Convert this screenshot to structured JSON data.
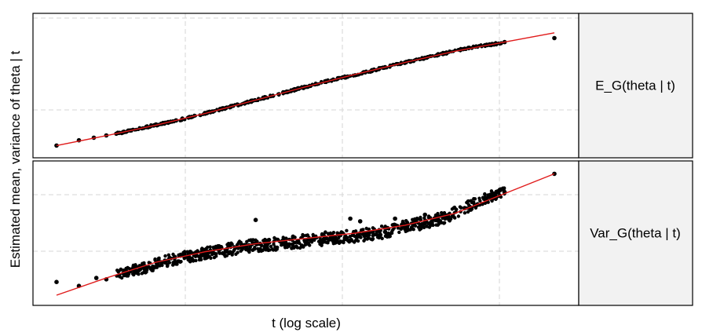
{
  "chart_data": {
    "type": "scatter",
    "xlabel": "t (log scale)",
    "ylabel": "Estimated mean, variance of theta | t",
    "x_scale": "log",
    "grid": true,
    "colors": {
      "points": "#000000",
      "fit_line": "#e01b1b",
      "strip": "#f2f2f2",
      "grid": "#d6d6d6"
    },
    "xlim": [
      0,
      1
    ],
    "panels": [
      {
        "strip_label": "E_G(theta | t)",
        "ylim": [
          0,
          1
        ],
        "series": [
          {
            "kind": "fit-line",
            "x": [
              0.0,
              0.1,
              0.2,
              0.3,
              0.4,
              0.5,
              0.6,
              0.7,
              0.8,
              0.9,
              1.0
            ],
            "y": [
              0.045,
              0.12,
              0.2,
              0.29,
              0.39,
              0.49,
              0.585,
              0.675,
              0.76,
              0.83,
              0.9
            ]
          },
          {
            "kind": "points",
            "x": [
              0.0,
              0.045,
              0.075,
              0.1,
              0.12,
              0.15,
              0.18,
              0.21,
              0.24,
              0.27,
              0.3,
              0.34,
              0.38,
              0.42,
              0.46,
              0.5,
              0.54,
              0.58,
              0.62,
              0.66,
              0.7,
              0.74,
              0.78,
              0.82,
              0.86,
              0.88,
              0.9,
              1.0
            ],
            "y": [
              0.045,
              0.085,
              0.105,
              0.122,
              0.135,
              0.16,
              0.185,
              0.21,
              0.235,
              0.26,
              0.29,
              0.33,
              0.37,
              0.41,
              0.45,
              0.49,
              0.53,
              0.565,
              0.6,
              0.64,
              0.675,
              0.71,
              0.745,
              0.78,
              0.805,
              0.815,
              0.83,
              0.86
            ]
          }
        ]
      },
      {
        "strip_label": "Var_G(theta | t)",
        "ylim": [
          0,
          1
        ],
        "series": [
          {
            "kind": "fit-line",
            "x": [
              0.0,
              0.1,
              0.2,
              0.3,
              0.4,
              0.5,
              0.6,
              0.7,
              0.8,
              0.9,
              1.0
            ],
            "y": [
              0.03,
              0.16,
              0.28,
              0.36,
              0.42,
              0.46,
              0.5,
              0.56,
              0.65,
              0.8,
              0.95
            ]
          },
          {
            "kind": "points",
            "x": [
              0.0,
              0.045,
              0.08,
              0.1,
              0.14,
              0.18,
              0.22,
              0.26,
              0.3,
              0.34,
              0.38,
              0.42,
              0.46,
              0.5,
              0.54,
              0.58,
              0.62,
              0.66,
              0.7,
              0.74,
              0.78,
              0.82,
              0.86,
              0.88,
              0.9,
              1.0
            ],
            "y": [
              0.13,
              0.1,
              0.16,
              0.15,
              0.21,
              0.24,
              0.29,
              0.32,
              0.35,
              0.37,
              0.4,
              0.41,
              0.43,
              0.44,
              0.46,
              0.47,
              0.49,
              0.51,
              0.55,
              0.58,
              0.62,
              0.69,
              0.76,
              0.79,
              0.81,
              0.95
            ]
          },
          {
            "kind": "outliers",
            "x": [
              0.4,
              0.59,
              0.61,
              0.68,
              0.72,
              0.74
            ],
            "y": [
              0.6,
              0.61,
              0.59,
              0.61,
              0.6,
              0.64
            ]
          }
        ]
      }
    ]
  }
}
